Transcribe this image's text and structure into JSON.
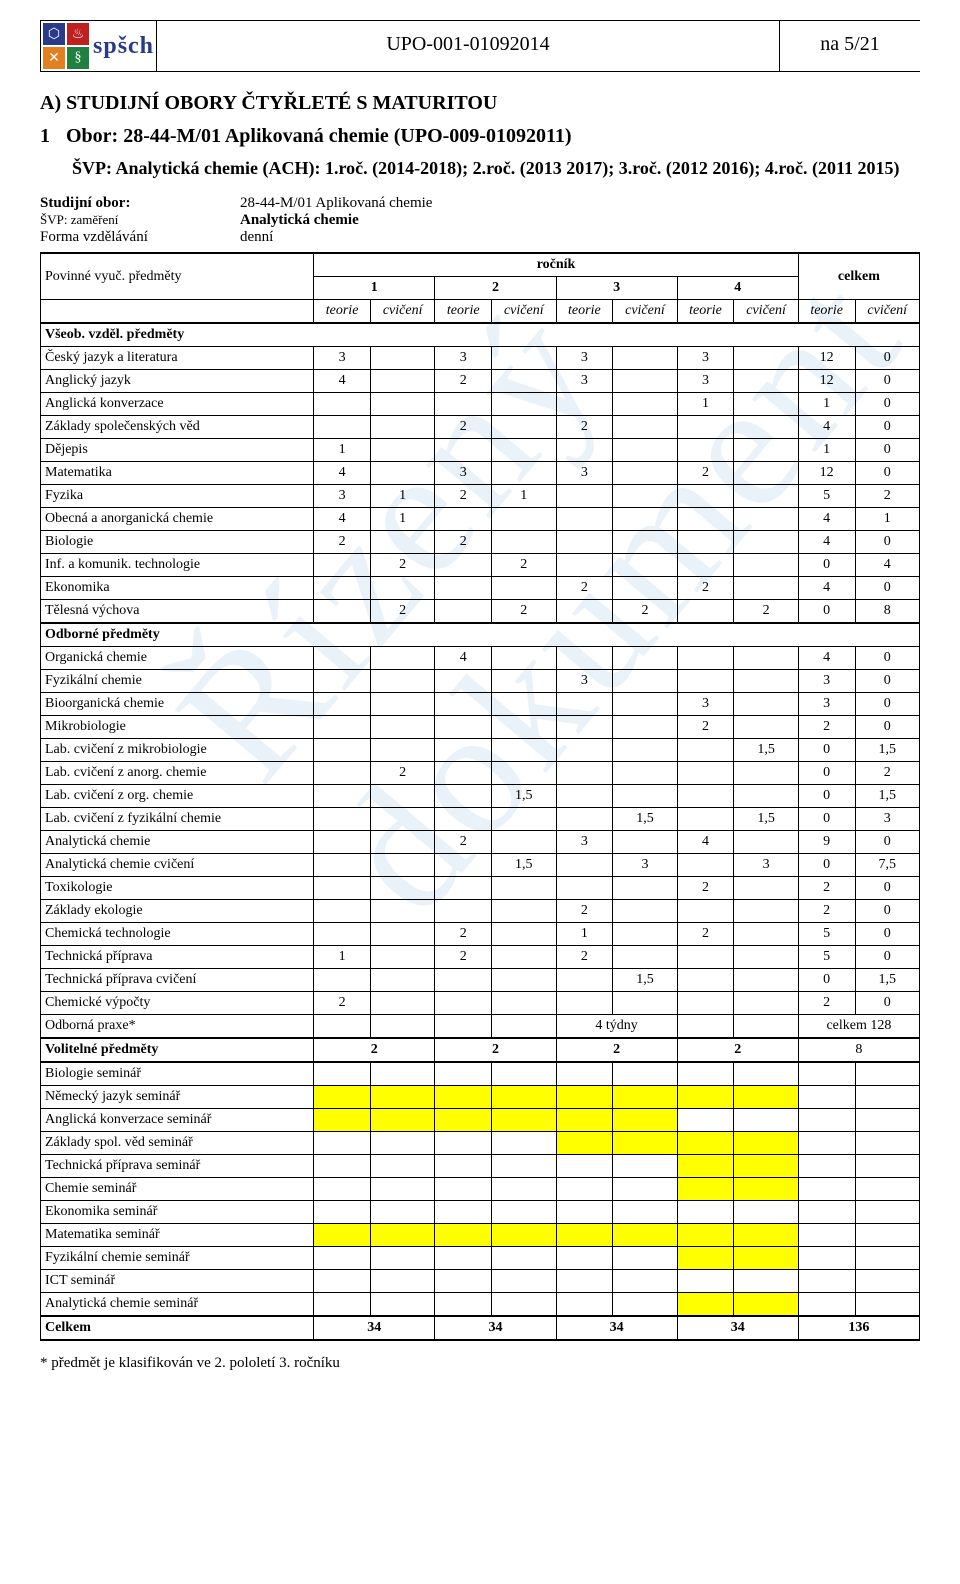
{
  "header": {
    "logo_text": "spšch",
    "doc_code": "UPO-001-01092014",
    "page": "na 5/21"
  },
  "watermark": "Řízený dokument",
  "section_a": "A)  STUDIJNÍ OBORY ČTYŘLETÉ S MATURITOU",
  "obor_num": "1",
  "obor_title": "Obor: 28-44-M/01 Aplikovaná chemie (UPO-009-01092011)",
  "svp": "ŠVP: Analytická chemie (ACH): 1.roč. (2014-2018); 2.roč. (2013 2017); 3.roč. (2012 2016); 4.roč. (2011 2015)",
  "meta": {
    "l1": "Studijní obor:",
    "v1": "28-44-M/01 Aplikovaná chemie",
    "l2": "ŠVP: zaměření",
    "v2": "Analytická chemie",
    "l3": "Forma vzdělávání",
    "v3": "denní"
  },
  "thead": {
    "povinne": "Povinné vyuč. předměty",
    "rocnik": "ročník",
    "celkem": "celkem",
    "c1": "1",
    "c2": "2",
    "c3": "3",
    "c4": "4",
    "teorie": "teorie",
    "cviceni": "cvičení"
  },
  "sections": {
    "vseob": "Všeob. vzděl. předměty",
    "odborne": "Odborné předměty",
    "volitelne": "Volitelné předměty",
    "celkem_row": "Celkem"
  },
  "rows": [
    {
      "n": "Český jazyk a literatura",
      "c": [
        "3",
        "",
        "3",
        "",
        "3",
        "",
        "3",
        "",
        "12",
        "0"
      ]
    },
    {
      "n": "Anglický jazyk",
      "c": [
        "4",
        "",
        "2",
        "",
        "3",
        "",
        "3",
        "",
        "12",
        "0"
      ]
    },
    {
      "n": "Anglická konverzace",
      "c": [
        "",
        "",
        "",
        "",
        "",
        "",
        "1",
        "",
        "1",
        "0"
      ]
    },
    {
      "n": "Základy společenských věd",
      "c": [
        "",
        "",
        "2",
        "",
        "2",
        "",
        "",
        "",
        "4",
        "0"
      ]
    },
    {
      "n": "Dějepis",
      "c": [
        "1",
        "",
        "",
        "",
        "",
        "",
        "",
        "",
        "1",
        "0"
      ]
    },
    {
      "n": "Matematika",
      "c": [
        "4",
        "",
        "3",
        "",
        "3",
        "",
        "2",
        "",
        "12",
        "0"
      ]
    },
    {
      "n": "Fyzika",
      "c": [
        "3",
        "1",
        "2",
        "1",
        "",
        "",
        "",
        "",
        "5",
        "2"
      ]
    },
    {
      "n": "Obecná a anorganická chemie",
      "c": [
        "4",
        "1",
        "",
        "",
        "",
        "",
        "",
        "",
        "4",
        "1"
      ]
    },
    {
      "n": "Biologie",
      "c": [
        "2",
        "",
        "2",
        "",
        "",
        "",
        "",
        "",
        "4",
        "0"
      ]
    },
    {
      "n": "Inf. a komunik. technologie",
      "c": [
        "",
        "2",
        "",
        "2",
        "",
        "",
        "",
        "",
        "0",
        "4"
      ]
    },
    {
      "n": "Ekonomika",
      "c": [
        "",
        "",
        "",
        "",
        "2",
        "",
        "2",
        "",
        "4",
        "0"
      ]
    },
    {
      "n": "Tělesná výchova",
      "c": [
        "",
        "2",
        "",
        "2",
        "",
        "2",
        "",
        "2",
        "0",
        "8"
      ]
    }
  ],
  "rows2": [
    {
      "n": "Organická chemie",
      "c": [
        "",
        "",
        "4",
        "",
        "",
        "",
        "",
        "",
        "4",
        "0"
      ]
    },
    {
      "n": "Fyzikální chemie",
      "c": [
        "",
        "",
        "",
        "",
        "3",
        "",
        "",
        "",
        "3",
        "0"
      ]
    },
    {
      "n": "Bioorganická chemie",
      "c": [
        "",
        "",
        "",
        "",
        "",
        "",
        "3",
        "",
        "3",
        "0"
      ]
    },
    {
      "n": "Mikrobiologie",
      "c": [
        "",
        "",
        "",
        "",
        "",
        "",
        "2",
        "",
        "2",
        "0"
      ]
    },
    {
      "n": "Lab. cvičení z mikrobiologie",
      "c": [
        "",
        "",
        "",
        "",
        "",
        "",
        "",
        "1,5",
        "0",
        "1,5"
      ]
    },
    {
      "n": "Lab. cvičení z anorg. chemie",
      "c": [
        "",
        "2",
        "",
        "",
        "",
        "",
        "",
        "",
        "0",
        "2"
      ]
    },
    {
      "n": "Lab. cvičení z org. chemie",
      "c": [
        "",
        "",
        "",
        "1,5",
        "",
        "",
        "",
        "",
        "0",
        "1,5"
      ]
    },
    {
      "n": "Lab. cvičení z fyzikální chemie",
      "c": [
        "",
        "",
        "",
        "",
        "",
        "1,5",
        "",
        "1,5",
        "0",
        "3"
      ]
    },
    {
      "n": "Analytická chemie",
      "c": [
        "",
        "",
        "2",
        "",
        "3",
        "",
        "4",
        "",
        "9",
        "0"
      ]
    },
    {
      "n": "Analytická chemie cvičení",
      "c": [
        "",
        "",
        "",
        "1,5",
        "",
        "3",
        "",
        "3",
        "0",
        "7,5"
      ]
    },
    {
      "n": "Toxikologie",
      "c": [
        "",
        "",
        "",
        "",
        "",
        "",
        "2",
        "",
        "2",
        "0"
      ]
    },
    {
      "n": "Základy ekologie",
      "c": [
        "",
        "",
        "",
        "",
        "2",
        "",
        "",
        "",
        "2",
        "0"
      ]
    },
    {
      "n": "Chemická technologie",
      "c": [
        "",
        "",
        "2",
        "",
        "1",
        "",
        "2",
        "",
        "5",
        "0"
      ]
    },
    {
      "n": "Technická příprava",
      "c": [
        "1",
        "",
        "2",
        "",
        "2",
        "",
        "",
        "",
        "5",
        "0"
      ]
    },
    {
      "n": "Technická příprava cvičení",
      "c": [
        "",
        "",
        "",
        "",
        "",
        "1,5",
        "",
        "",
        "0",
        "1,5"
      ]
    },
    {
      "n": "Chemické výpočty",
      "c": [
        "2",
        "",
        "",
        "",
        "",
        "",
        "",
        "",
        "2",
        "0"
      ]
    }
  ],
  "praxe": {
    "n": "Odborná praxe*",
    "mid": "4 týdny",
    "tot": "celkem 128"
  },
  "volitelne_row": {
    "c": [
      "2",
      "2",
      "2",
      "2"
    ],
    "tot": "8"
  },
  "seminars": [
    {
      "n": "Biologie seminář",
      "y": [
        0,
        0,
        0,
        0,
        0,
        0,
        0,
        0
      ]
    },
    {
      "n": "Německý jazyk seminář",
      "y": [
        1,
        1,
        1,
        1,
        1,
        1,
        1,
        1
      ]
    },
    {
      "n": "Anglická konverzace seminář",
      "y": [
        1,
        1,
        1,
        1,
        1,
        1,
        0,
        0
      ]
    },
    {
      "n": "Základy spol. věd seminář",
      "y": [
        0,
        0,
        0,
        0,
        1,
        1,
        1,
        1
      ]
    },
    {
      "n": "Technická příprava seminář",
      "y": [
        0,
        0,
        0,
        0,
        0,
        0,
        1,
        1
      ]
    },
    {
      "n": "Chemie seminář",
      "y": [
        0,
        0,
        0,
        0,
        0,
        0,
        1,
        1
      ]
    },
    {
      "n": "Ekonomika seminář",
      "y": [
        0,
        0,
        0,
        0,
        0,
        0,
        0,
        0
      ]
    },
    {
      "n": "Matematika seminář",
      "y": [
        1,
        1,
        1,
        1,
        1,
        1,
        1,
        1
      ]
    },
    {
      "n": "Fyzikální chemie seminář",
      "y": [
        0,
        0,
        0,
        0,
        0,
        0,
        1,
        1
      ]
    },
    {
      "n": "ICT seminář",
      "y": [
        0,
        0,
        0,
        0,
        0,
        0,
        0,
        0
      ]
    },
    {
      "n": "Analytická chemie seminář",
      "y": [
        0,
        0,
        0,
        0,
        0,
        0,
        1,
        1
      ]
    }
  ],
  "totals": {
    "c": [
      "34",
      "34",
      "34",
      "34"
    ],
    "tot": "136"
  },
  "footnote": "* předmět je klasifikován ve 2. pololetí 3. ročníku",
  "colors": {
    "yellow": "#ffff00"
  }
}
